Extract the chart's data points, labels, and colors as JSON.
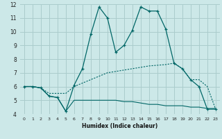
{
  "xlabel": "Humidex (Indice chaleur)",
  "bg_color": "#cce8e8",
  "grid_color": "#aacccc",
  "line_color": "#006666",
  "xlim": [
    -0.5,
    23.5
  ],
  "ylim": [
    4,
    12
  ],
  "xticks": [
    0,
    1,
    2,
    3,
    4,
    5,
    6,
    7,
    8,
    9,
    10,
    11,
    12,
    13,
    14,
    15,
    16,
    17,
    18,
    19,
    20,
    21,
    22,
    23
  ],
  "yticks": [
    4,
    5,
    6,
    7,
    8,
    9,
    10,
    11,
    12
  ],
  "line1_x": [
    0,
    1,
    2,
    3,
    4,
    5,
    6,
    7,
    8,
    9,
    10,
    11,
    12,
    13,
    14,
    15,
    16,
    17,
    18,
    19,
    20,
    21,
    22,
    23
  ],
  "line1_y": [
    6.0,
    6.0,
    5.9,
    5.3,
    5.2,
    4.2,
    6.1,
    7.3,
    9.8,
    11.8,
    11.0,
    8.5,
    9.0,
    10.1,
    11.8,
    11.5,
    11.5,
    10.2,
    7.7,
    7.3,
    6.5,
    6.0,
    4.35,
    4.35
  ],
  "line2_x": [
    0,
    1,
    2,
    3,
    4,
    5,
    6,
    7,
    8,
    9,
    10,
    11,
    12,
    13,
    14,
    15,
    16,
    17,
    18,
    19,
    20,
    21,
    22,
    23
  ],
  "line2_y": [
    6.0,
    6.0,
    5.9,
    5.3,
    5.2,
    4.2,
    5.0,
    5.0,
    5.0,
    5.0,
    5.0,
    5.0,
    4.9,
    4.9,
    4.8,
    4.7,
    4.7,
    4.6,
    4.6,
    4.6,
    4.5,
    4.5,
    4.4,
    4.4
  ],
  "line3_x": [
    0,
    1,
    2,
    3,
    4,
    5,
    6,
    7,
    8,
    9,
    10,
    11,
    12,
    13,
    14,
    15,
    16,
    17,
    18,
    19,
    20,
    21,
    22,
    23
  ],
  "line3_y": [
    6.0,
    6.0,
    5.9,
    5.5,
    5.5,
    5.5,
    6.0,
    6.25,
    6.5,
    6.75,
    7.0,
    7.1,
    7.2,
    7.3,
    7.4,
    7.5,
    7.55,
    7.6,
    7.7,
    7.3,
    6.5,
    6.5,
    6.0,
    4.35
  ]
}
